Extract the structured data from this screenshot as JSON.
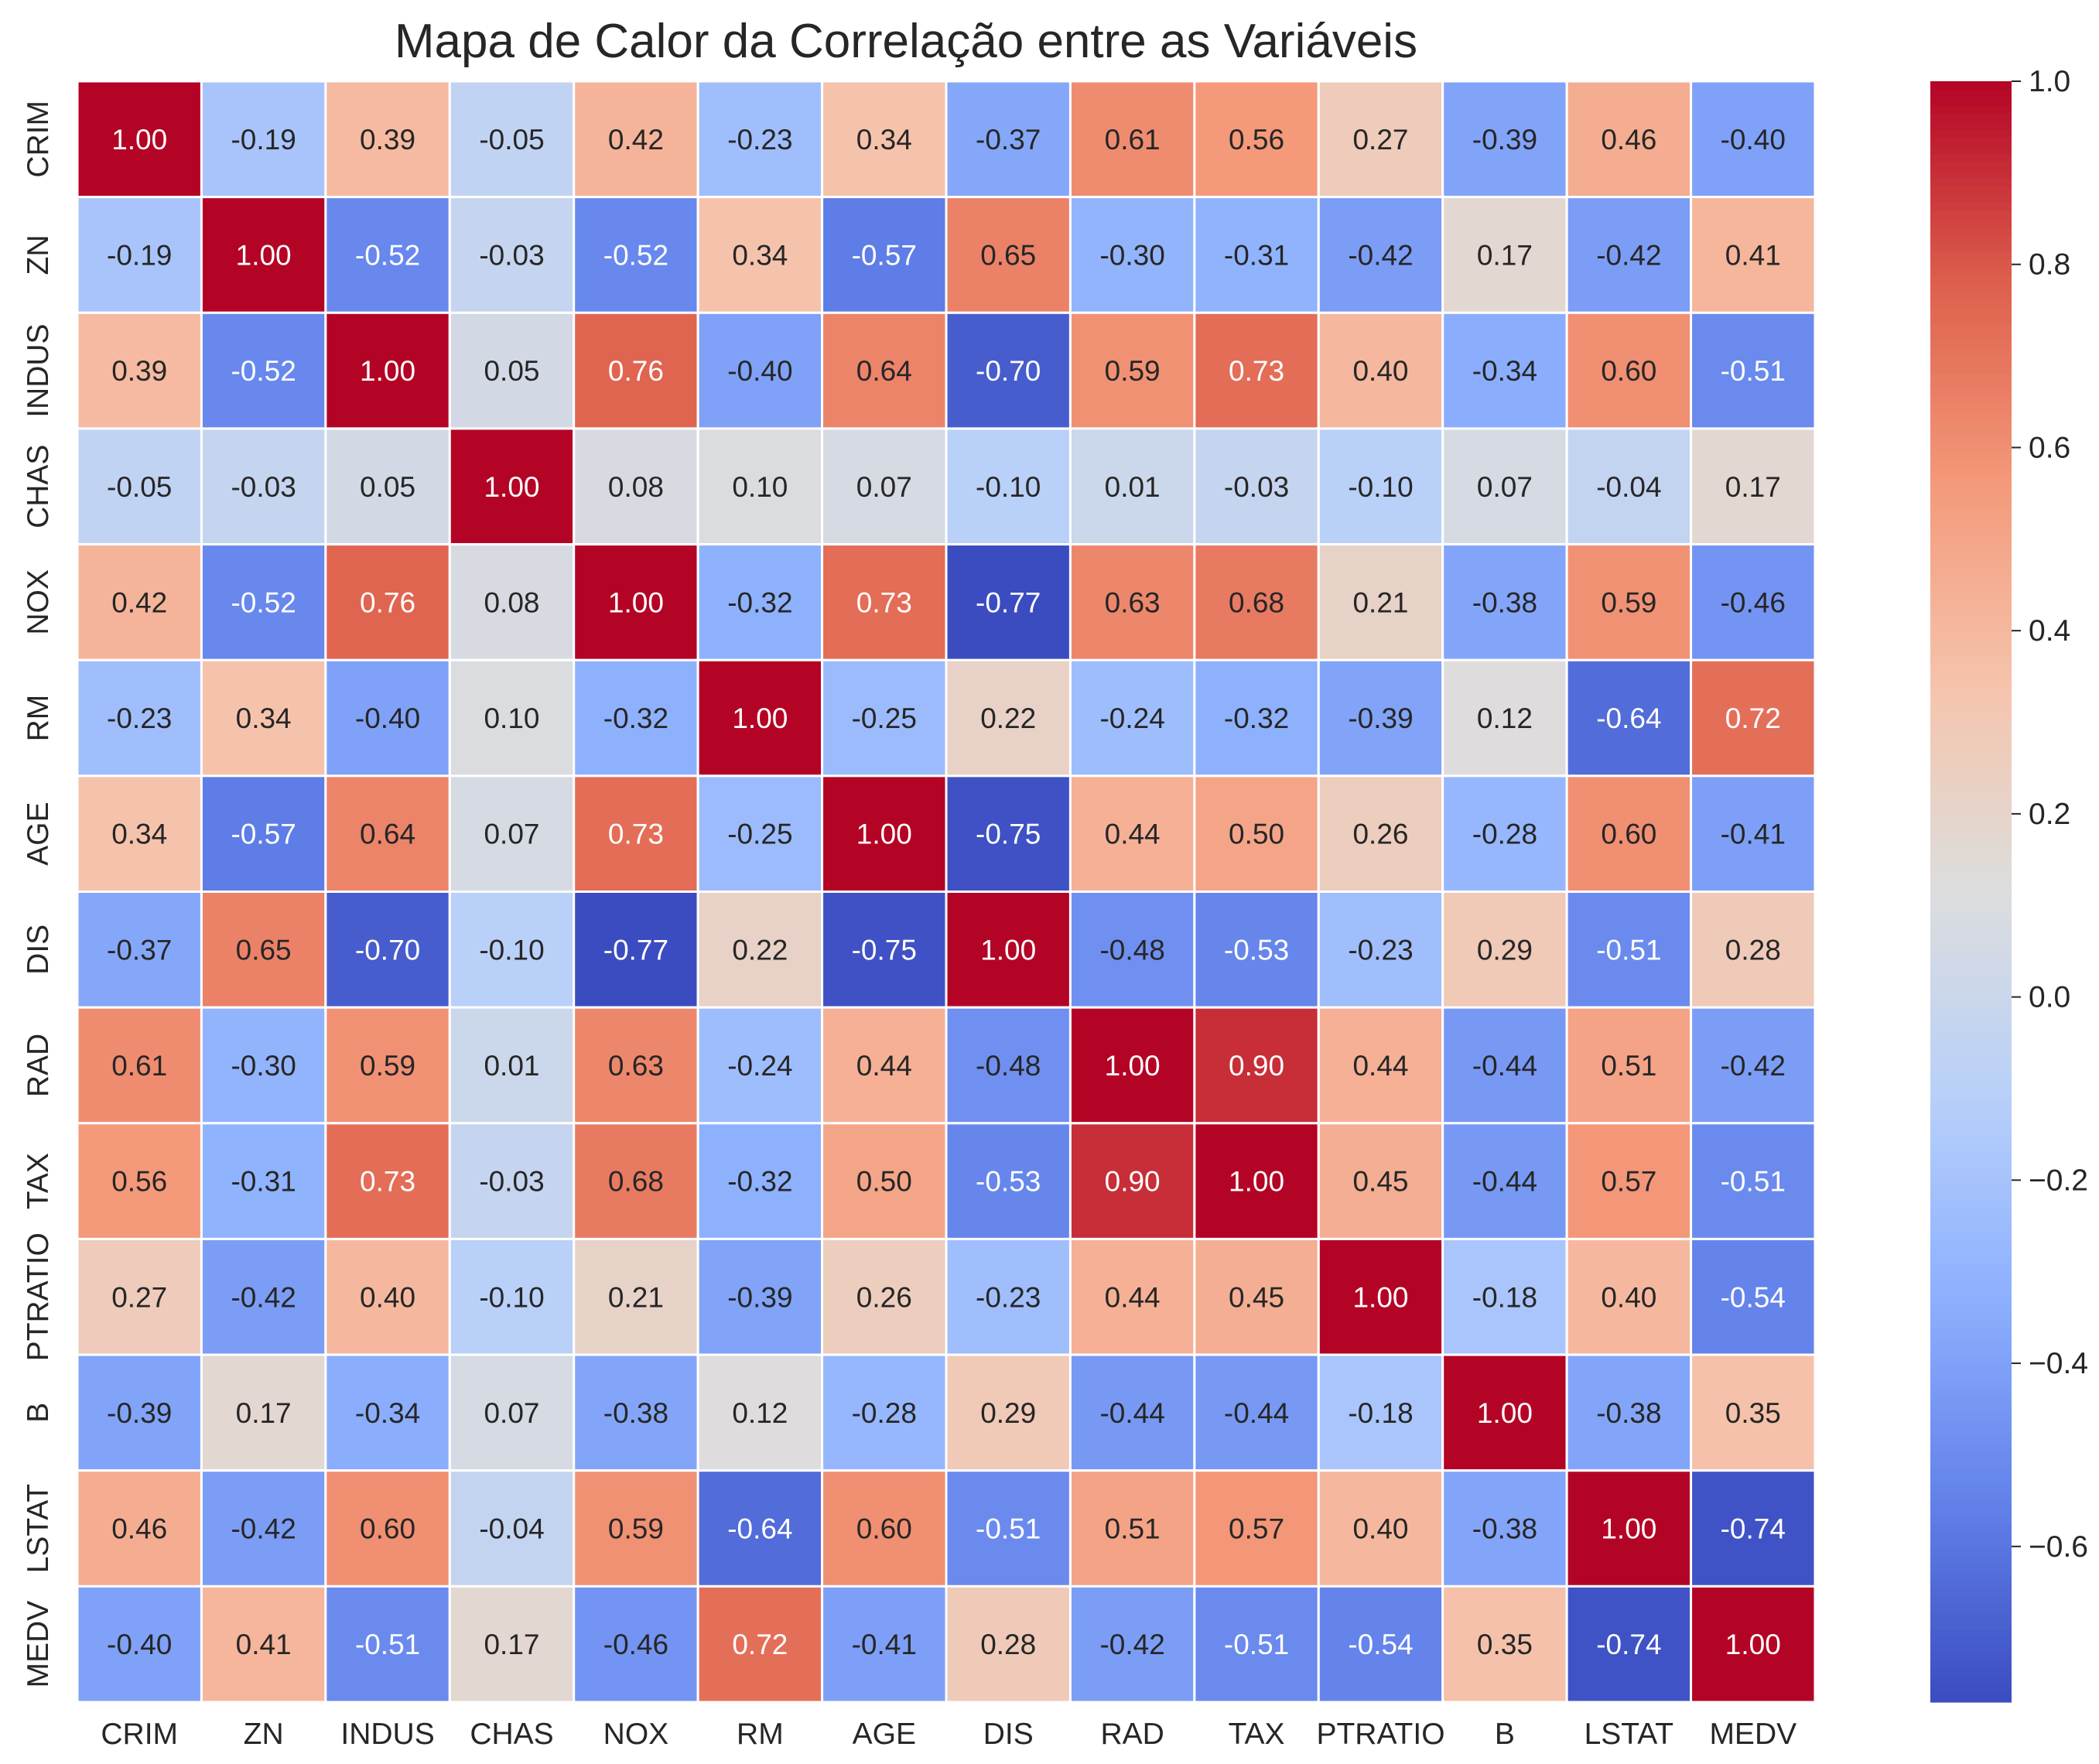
{
  "chart_data": {
    "type": "heatmap",
    "title": "Mapa de Calor da Correlação entre as Variáveis",
    "variables": [
      "CRIM",
      "ZN",
      "INDUS",
      "CHAS",
      "NOX",
      "RM",
      "AGE",
      "DIS",
      "RAD",
      "TAX",
      "PTRATIO",
      "B",
      "LSTAT",
      "MEDV"
    ],
    "matrix": [
      [
        1.0,
        -0.19,
        0.39,
        -0.05,
        0.42,
        -0.23,
        0.34,
        -0.37,
        0.61,
        0.56,
        0.27,
        -0.39,
        0.46,
        -0.4
      ],
      [
        -0.19,
        1.0,
        -0.52,
        -0.03,
        -0.52,
        0.34,
        -0.57,
        0.65,
        -0.3,
        -0.31,
        -0.42,
        0.17,
        -0.42,
        0.41
      ],
      [
        0.39,
        -0.52,
        1.0,
        0.05,
        0.76,
        -0.4,
        0.64,
        -0.7,
        0.59,
        0.73,
        0.4,
        -0.34,
        0.6,
        -0.51
      ],
      [
        -0.05,
        -0.03,
        0.05,
        1.0,
        0.08,
        0.1,
        0.07,
        -0.1,
        0.01,
        -0.03,
        -0.1,
        0.07,
        -0.04,
        0.17
      ],
      [
        0.42,
        -0.52,
        0.76,
        0.08,
        1.0,
        -0.32,
        0.73,
        -0.77,
        0.63,
        0.68,
        0.21,
        -0.38,
        0.59,
        -0.46
      ],
      [
        -0.23,
        0.34,
        -0.4,
        0.1,
        -0.32,
        1.0,
        -0.25,
        0.22,
        -0.24,
        -0.32,
        -0.39,
        0.12,
        -0.64,
        0.72
      ],
      [
        0.34,
        -0.57,
        0.64,
        0.07,
        0.73,
        -0.25,
        1.0,
        -0.75,
        0.44,
        0.5,
        0.26,
        -0.28,
        0.6,
        -0.41
      ],
      [
        -0.37,
        0.65,
        -0.7,
        -0.1,
        -0.77,
        0.22,
        -0.75,
        1.0,
        -0.48,
        -0.53,
        -0.23,
        0.29,
        -0.51,
        0.28
      ],
      [
        0.61,
        -0.3,
        0.59,
        0.01,
        0.63,
        -0.24,
        0.44,
        -0.48,
        1.0,
        0.9,
        0.44,
        -0.44,
        0.51,
        -0.42
      ],
      [
        0.56,
        -0.31,
        0.73,
        -0.03,
        0.68,
        -0.32,
        0.5,
        -0.53,
        0.9,
        1.0,
        0.45,
        -0.44,
        0.57,
        -0.51
      ],
      [
        0.27,
        -0.42,
        0.4,
        -0.1,
        0.21,
        -0.39,
        0.26,
        -0.23,
        0.44,
        0.45,
        1.0,
        -0.18,
        0.4,
        -0.54
      ],
      [
        -0.39,
        0.17,
        -0.34,
        0.07,
        -0.38,
        0.12,
        -0.28,
        0.29,
        -0.44,
        -0.44,
        -0.18,
        1.0,
        -0.38,
        0.35
      ],
      [
        0.46,
        -0.42,
        0.6,
        -0.04,
        0.59,
        -0.64,
        0.6,
        -0.51,
        0.51,
        0.57,
        0.4,
        -0.38,
        1.0,
        -0.74
      ],
      [
        -0.4,
        0.41,
        -0.51,
        0.17,
        -0.46,
        0.72,
        -0.41,
        0.28,
        -0.42,
        -0.51,
        -0.54,
        0.35,
        -0.74,
        1.0
      ]
    ],
    "value_format": "2 decimals",
    "colormap": "coolwarm",
    "vmin": -0.77,
    "vmax": 1.0,
    "colorbar_ticks": [
      1.0,
      0.8,
      0.6,
      0.4,
      0.2,
      0.0,
      -0.2,
      -0.4,
      -0.6
    ],
    "colorbar_tick_labels": [
      "1.0",
      "0.8",
      "0.6",
      "0.4",
      "0.2",
      "0.0",
      "−0.2",
      "−0.4",
      "−0.6"
    ],
    "cell_border_color": "#ffffff",
    "grid": false,
    "legend": "colorbar-right"
  }
}
